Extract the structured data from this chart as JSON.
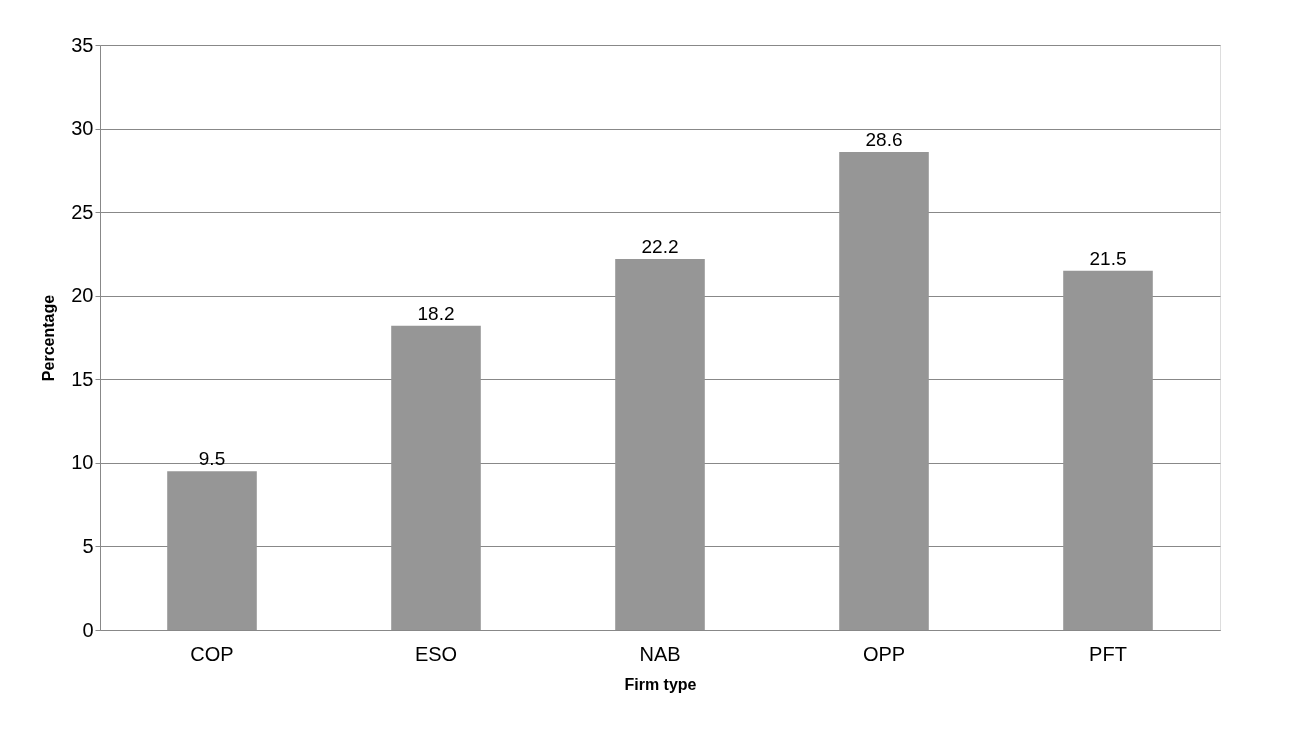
{
  "chart_data": {
    "type": "bar",
    "xlabel": "Firm type",
    "ylabel": "Percentage",
    "categories": [
      "COP",
      "ESO",
      "NAB",
      "OPP",
      "PFT"
    ],
    "values": [
      9.5,
      18.2,
      22.2,
      28.6,
      21.5
    ],
    "color": "#969696",
    "ylim": [
      0,
      35
    ],
    "yticks": [
      0,
      5,
      10,
      15,
      20,
      25,
      30,
      35
    ],
    "grid": "y",
    "data_labels": true
  }
}
